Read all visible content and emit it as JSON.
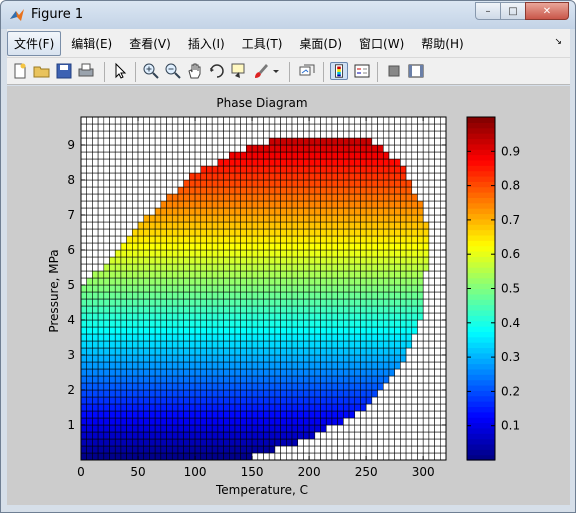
{
  "window": {
    "title": "Figure 1",
    "minimize_label": "–",
    "maximize_label": "□",
    "close_label": "✕"
  },
  "menu": {
    "items": [
      "文件(F)",
      "编辑(E)",
      "查看(V)",
      "插入(I)",
      "工具(T)",
      "桌面(D)",
      "窗口(W)",
      "帮助(H)"
    ],
    "overflow_label": "↘"
  },
  "toolbar": {
    "icons": [
      "new-figure-icon",
      "open-file-icon",
      "save-icon",
      "print-icon",
      "pointer-icon",
      "zoom-in-icon",
      "zoom-out-icon",
      "pan-icon",
      "rotate-3d-icon",
      "data-cursor-icon",
      "brush-icon",
      "brush-dropdown-icon",
      "link-plot-icon",
      "colorbar-icon",
      "legend-icon",
      "hide-plot-tools-icon",
      "show-plot-tools-icon"
    ],
    "pressed": "colorbar-icon"
  },
  "chart_data": {
    "type": "heatmap",
    "title": "Phase Diagram",
    "xlabel": "Temperature, C",
    "ylabel": "Pressure, MPa",
    "xlim": [
      0,
      320
    ],
    "ylim": [
      0,
      9.8
    ],
    "xticks": [
      0,
      50,
      100,
      150,
      200,
      250,
      300
    ],
    "yticks": [
      1,
      2,
      3,
      4,
      5,
      6,
      7,
      8,
      9
    ],
    "grid": "black cell edges on white background",
    "colormap": "jet",
    "clim": [
      0,
      1
    ],
    "value_rule": "color value = pressure / 9.8 inside the two-phase region; cells outside are blank (white)",
    "region_upper_boundary": [
      [
        0,
        5.0
      ],
      [
        20,
        5.5
      ],
      [
        50,
        6.7
      ],
      [
        100,
        8.2
      ],
      [
        150,
        9.0
      ],
      [
        200,
        9.3
      ],
      [
        250,
        9.2
      ],
      [
        280,
        8.5
      ],
      [
        300,
        7.2
      ],
      [
        305,
        6.5
      ]
    ],
    "region_lower_boundary": [
      [
        0,
        0.0
      ],
      [
        140,
        0.0
      ],
      [
        200,
        0.6
      ],
      [
        250,
        1.5
      ],
      [
        280,
        2.7
      ],
      [
        300,
        4.3
      ],
      [
        305,
        6.5
      ]
    ],
    "colorbar": {
      "ticks": [
        0.1,
        0.2,
        0.3,
        0.4,
        0.5,
        0.6,
        0.7,
        0.8,
        0.9
      ],
      "tick_labels": [
        "0.1",
        "0.2",
        "0.3",
        "0.4",
        "0.5",
        "0.6",
        "0.7",
        "0.8",
        "0.9"
      ]
    }
  }
}
